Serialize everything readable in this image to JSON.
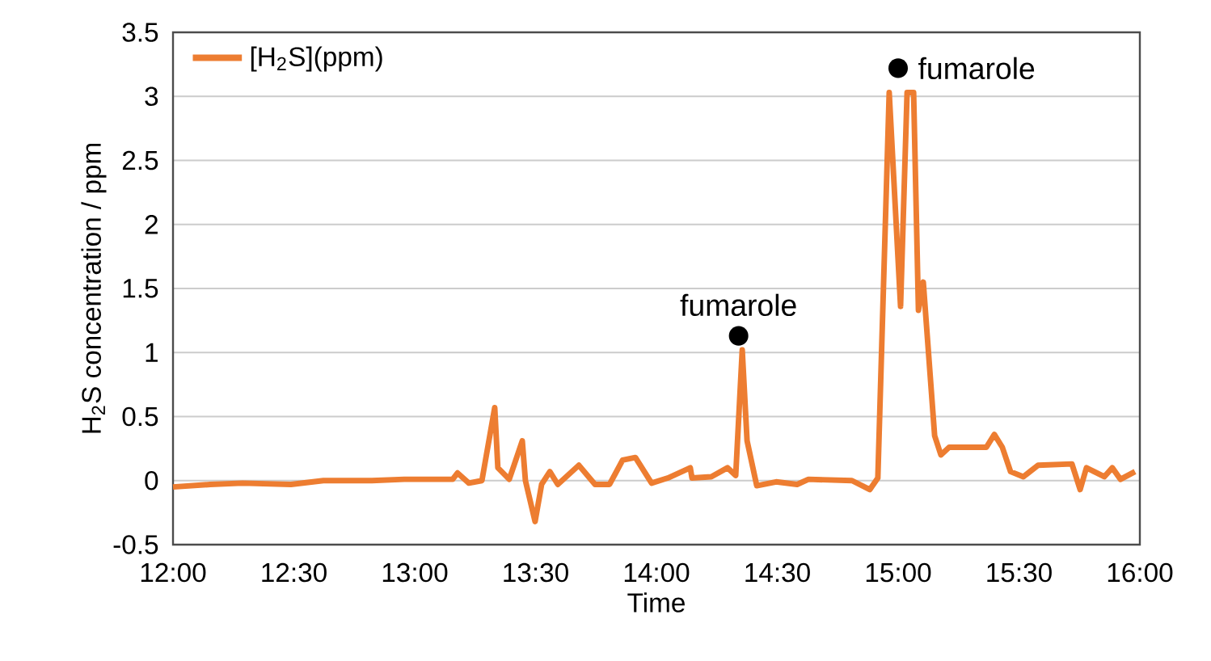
{
  "chart_data": {
    "type": "line",
    "xlabel": "Time",
    "ylabel": "H$_{2}$S concentration / ppm",
    "x": [
      12.0,
      12.154,
      12.288,
      12.488,
      12.622,
      12.823,
      12.957,
      13.157,
      13.177,
      13.224,
      13.278,
      13.331,
      13.344,
      13.391,
      13.411,
      13.445,
      13.458,
      13.498,
      13.525,
      13.559,
      13.592,
      13.679,
      13.746,
      13.806,
      13.86,
      13.913,
      13.98,
      14.047,
      14.14,
      14.147,
      14.227,
      14.294,
      14.328,
      14.355,
      14.375,
      14.415,
      14.495,
      14.582,
      14.629,
      14.809,
      14.883,
      14.916,
      14.963,
      15.01,
      15.037,
      15.064,
      15.084,
      15.104,
      15.151,
      15.177,
      15.211,
      15.365,
      15.398,
      15.431,
      15.465,
      15.518,
      15.579,
      15.719,
      15.753,
      15.779,
      15.853,
      15.886,
      15.92,
      15.98
    ],
    "series": [
      {
        "name": "[H$_{2}$S](ppm)",
        "color": "#ed7d31",
        "values": [
          -0.05,
          -0.03,
          -0.02,
          -0.03,
          0.0,
          0.0,
          0.01,
          0.01,
          0.06,
          -0.02,
          0.0,
          0.57,
          0.1,
          0.01,
          0.12,
          0.31,
          0.0,
          -0.32,
          -0.03,
          0.07,
          -0.03,
          0.12,
          -0.03,
          -0.03,
          0.16,
          0.18,
          -0.02,
          0.02,
          0.1,
          0.02,
          0.03,
          0.1,
          0.04,
          1.02,
          0.31,
          -0.04,
          -0.01,
          -0.03,
          0.01,
          0.0,
          -0.07,
          0.02,
          3.03,
          1.36,
          3.03,
          3.03,
          1.33,
          1.55,
          0.35,
          0.2,
          0.26,
          0.26,
          0.36,
          0.26,
          0.07,
          0.03,
          0.12,
          0.13,
          -0.07,
          0.1,
          0.03,
          0.1,
          0.01,
          0.07
        ]
      }
    ],
    "xlim": [
      12,
      16
    ],
    "xticks": [
      {
        "value": 12,
        "label": "12:00"
      },
      {
        "value": 12.5,
        "label": "12:30"
      },
      {
        "value": 13,
        "label": "13:00"
      },
      {
        "value": 13.5,
        "label": "13:30"
      },
      {
        "value": 14,
        "label": "14:00"
      },
      {
        "value": 14.5,
        "label": "14:30"
      },
      {
        "value": 15,
        "label": "15:00"
      },
      {
        "value": 15.5,
        "label": "15:30"
      },
      {
        "value": 16,
        "label": "16:00"
      }
    ],
    "ylim": [
      -0.5,
      3.5
    ],
    "yticks": [
      -0.5,
      0,
      0.5,
      1,
      1.5,
      2,
      2.5,
      3,
      3.5
    ],
    "grid": "y",
    "legend": "top left",
    "marker": "none",
    "line_style": "solid",
    "annotations": [
      {
        "text": "fumarole",
        "x": 14.34,
        "y": 1.13
      },
      {
        "text": "fumarole",
        "x": 15.0,
        "y": 3.22
      }
    ]
  }
}
